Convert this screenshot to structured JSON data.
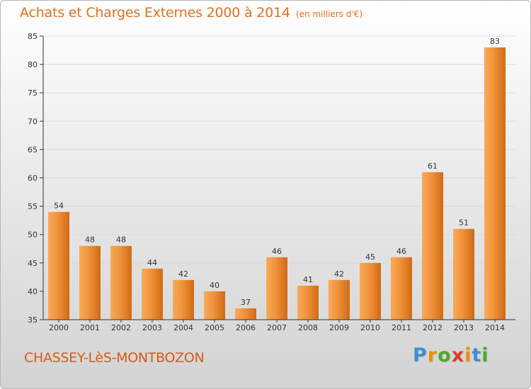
{
  "header": {
    "title": "Achats et Charges Externes 2000 à 2014",
    "subtitle": "(en milliers d'€)"
  },
  "footer": {
    "location": "CHASSEY-LèS-MONTBOZON",
    "logo_text": "Proxiti",
    "logo_colors": [
      "#3f8fd0",
      "#f09000",
      "#4aaa2a",
      "#e23a2a",
      "#f09000",
      "#3f8fd0",
      "#4aaa2a"
    ]
  },
  "colors": {
    "bar_light": "#f9aa5a",
    "bar_mid": "#f0923a",
    "bar_dark": "#d06a14",
    "axis": "#333333",
    "grid": "#d9d9d9",
    "title": "#e2701f"
  },
  "chart_data": {
    "type": "bar",
    "categories": [
      "2000",
      "2001",
      "2002",
      "2003",
      "2004",
      "2005",
      "2006",
      "2007",
      "2008",
      "2009",
      "2010",
      "2011",
      "2012",
      "2013",
      "2014"
    ],
    "values": [
      54,
      48,
      48,
      44,
      42,
      40,
      37,
      46,
      41,
      42,
      45,
      46,
      61,
      51,
      83
    ],
    "ylim": [
      35,
      85
    ],
    "yticks": [
      35,
      40,
      45,
      50,
      55,
      60,
      65,
      70,
      75,
      80,
      85
    ],
    "title": "Achats et Charges Externes 2000 à 2014",
    "xlabel": "",
    "ylabel": "",
    "grid": true,
    "data_labels": true
  }
}
